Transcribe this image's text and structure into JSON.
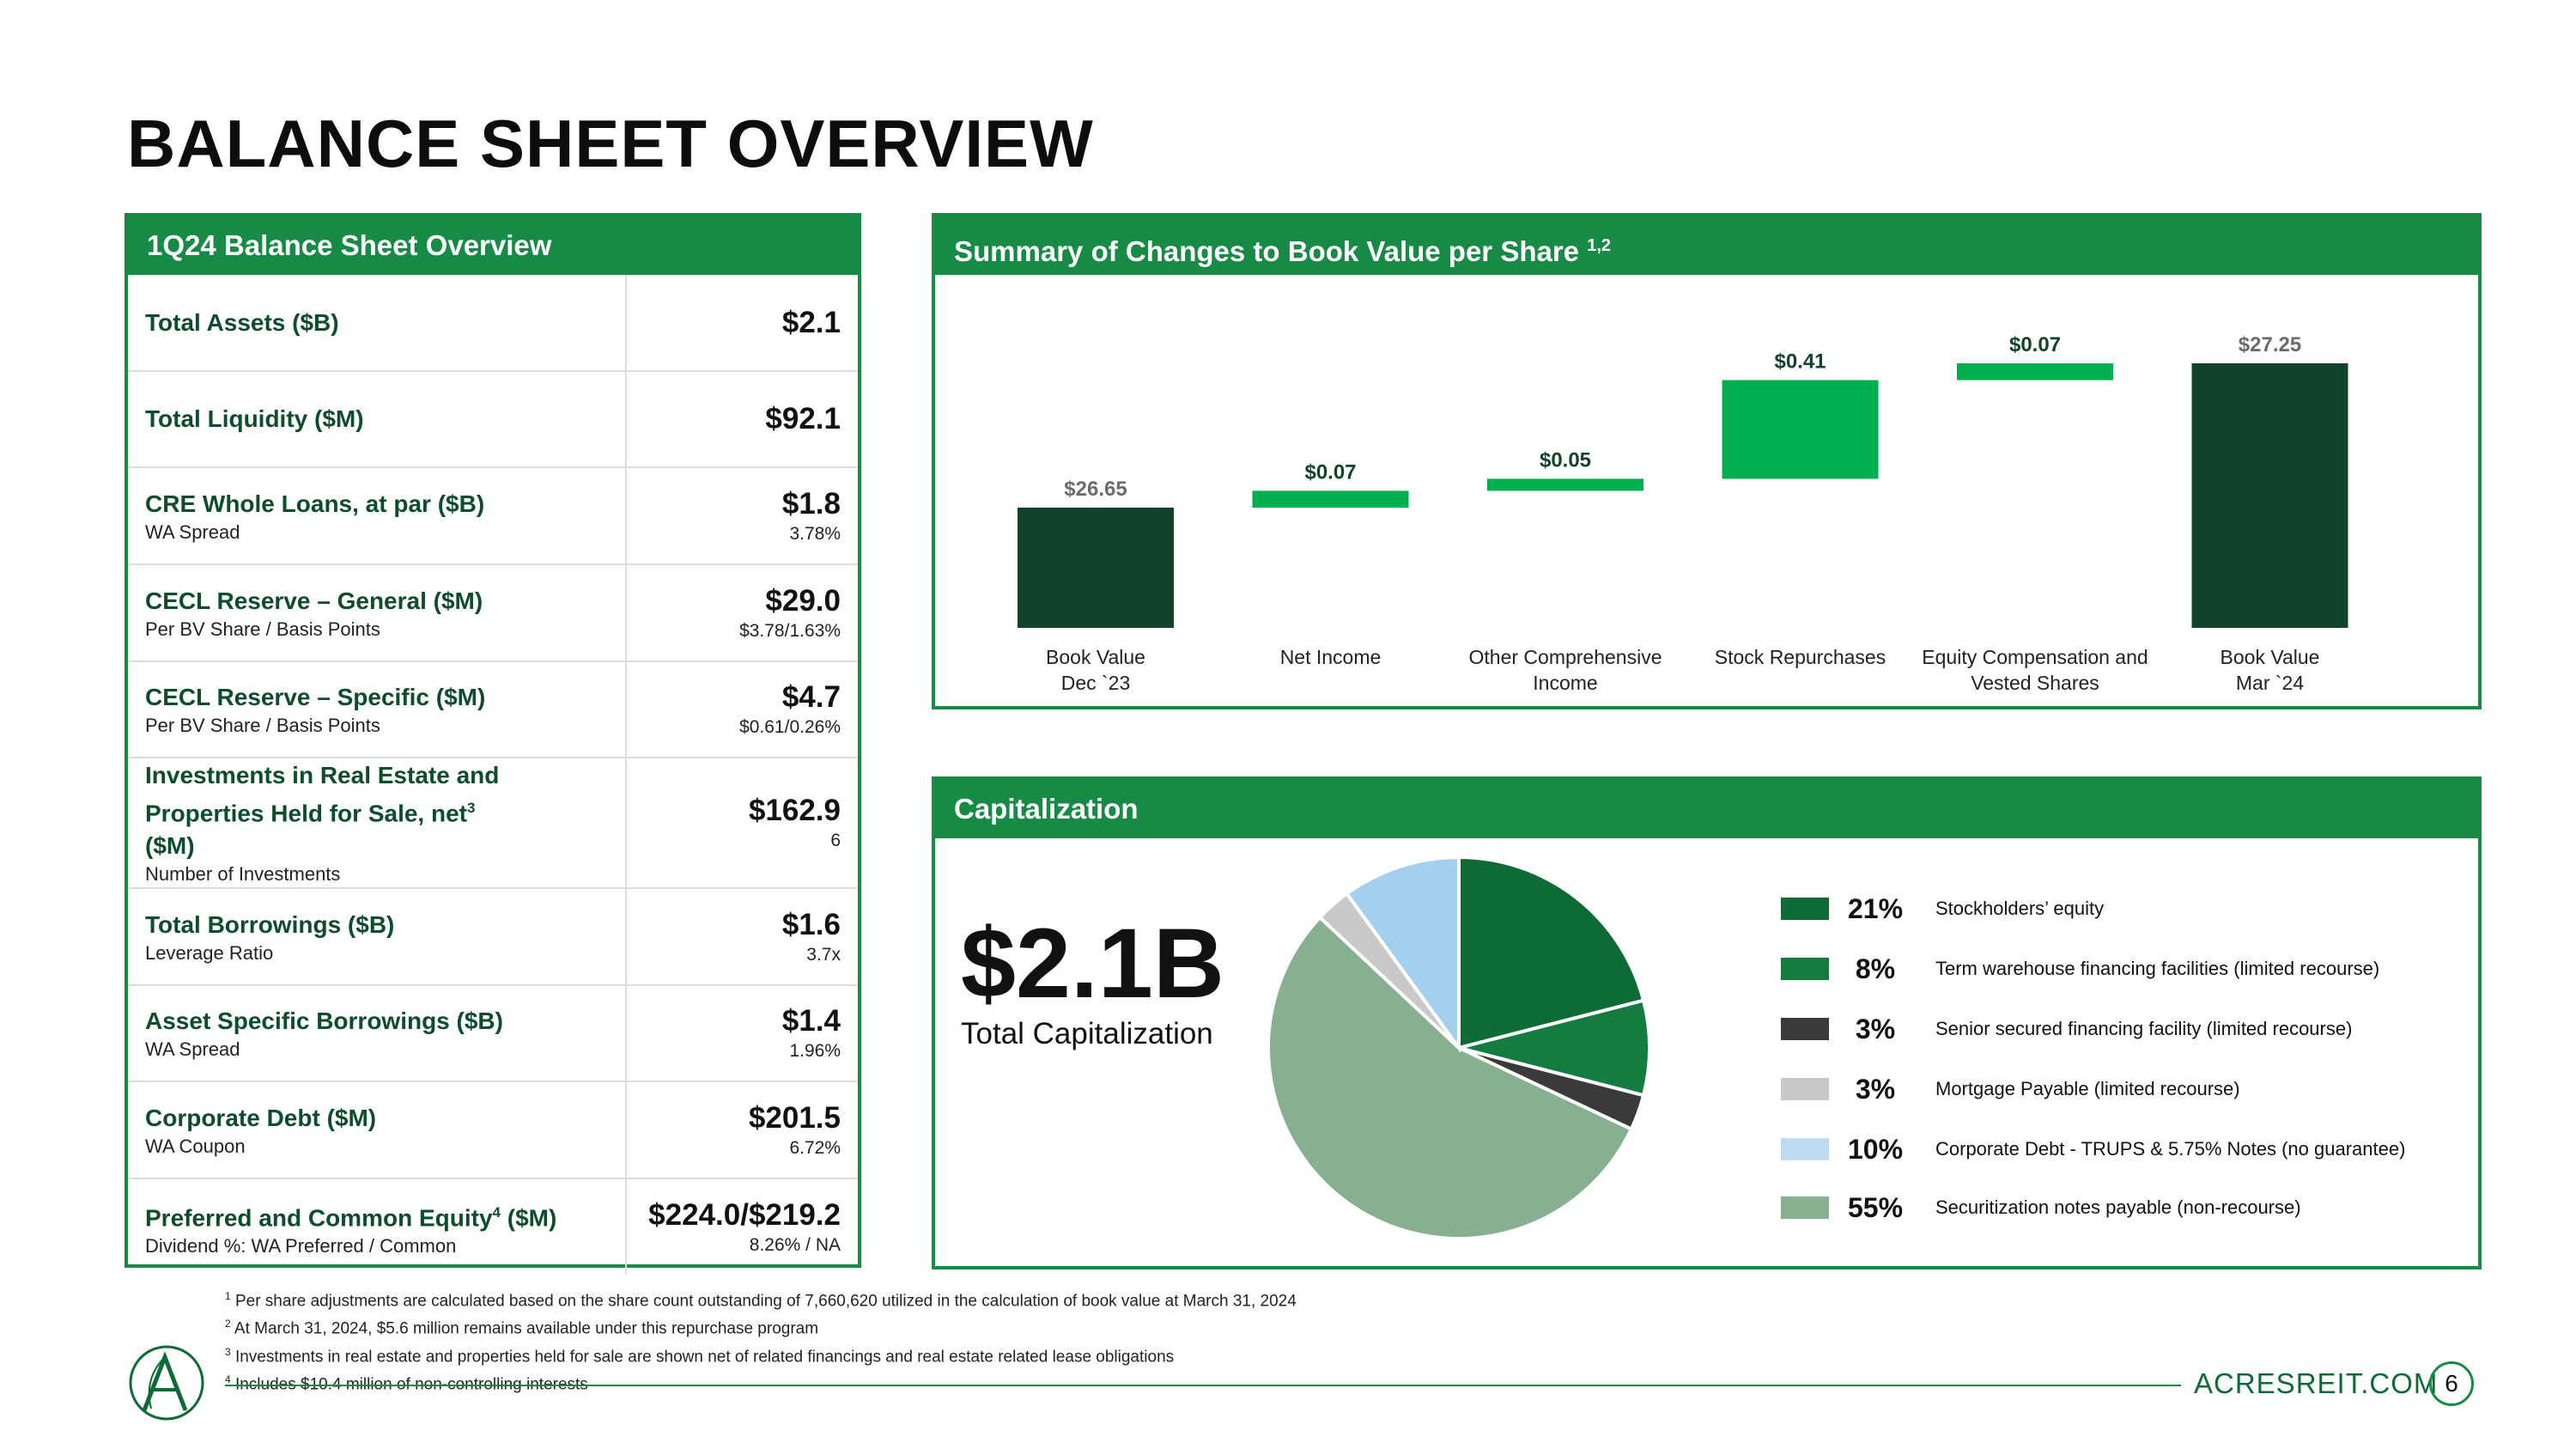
{
  "page": {
    "title": "BALANCE SHEET OVERVIEW",
    "footer_url": "ACRESREIT.COM",
    "page_number": "6"
  },
  "balance_sheet": {
    "header": "1Q24 Balance Sheet Overview",
    "rows": [
      {
        "label": "Total Assets ($B)",
        "sub": "",
        "value": "$2.1",
        "subvalue": ""
      },
      {
        "label": "Total Liquidity ($M)",
        "sub": "",
        "value": "$92.1",
        "subvalue": ""
      },
      {
        "label": "CRE Whole Loans, at par ($B)",
        "sub": "WA Spread",
        "value": "$1.8",
        "subvalue": "3.78%"
      },
      {
        "label": "CECL Reserve – General ($M)",
        "sub": "Per BV Share / Basis Points",
        "value": "$29.0",
        "subvalue": "$3.78/1.63%"
      },
      {
        "label": "CECL Reserve – Specific ($M)",
        "sub": "Per BV Share / Basis Points",
        "value": "$4.7",
        "subvalue": "$0.61/0.26%"
      },
      {
        "label": "Investments in Real Estate and Properties Held for Sale, net",
        "label_sup": "3",
        "label_suffix": " ($M)",
        "sub": "Number of Investments",
        "value": "$162.9",
        "subvalue": "6"
      },
      {
        "label": "Total Borrowings ($B)",
        "sub": "Leverage Ratio",
        "value": "$1.6",
        "subvalue": "3.7x"
      },
      {
        "label": "Asset Specific Borrowings ($B)",
        "sub": "WA Spread",
        "value": "$1.4",
        "subvalue": "1.96%"
      },
      {
        "label": "Corporate Debt ($M)",
        "sub": "WA Coupon",
        "value": "$201.5",
        "subvalue": "6.72%"
      },
      {
        "label": "Preferred and Common Equity",
        "label_sup": "4",
        "label_suffix": " ($M)",
        "sub": "Dividend %: WA Preferred / Common",
        "value": "$224.0/$219.2",
        "subvalue": "8.26% / NA"
      }
    ]
  },
  "book_value_chart": {
    "header": "Summary of Changes to Book Value per Share",
    "header_sup": "1,2"
  },
  "capitalization": {
    "header": "Capitalization",
    "total": "$2.1B",
    "total_label": "Total Capitalization"
  },
  "chart_data": [
    {
      "type": "bar",
      "subtype": "waterfall",
      "title": "Summary of Changes to Book Value per Share",
      "categories": [
        "Book Value\nDec `23",
        "Net Income",
        "Other Comprehensive\nIncome",
        "Stock Repurchases",
        "Equity Compensation and\nVested Shares",
        "Book Value\nMar `24"
      ],
      "values": [
        26.65,
        0.07,
        0.05,
        0.41,
        0.07,
        27.25
      ],
      "labels": [
        "$26.65",
        "$0.07",
        "$0.05",
        "$0.41",
        "$0.07",
        "$27.25"
      ],
      "kinds": [
        "total",
        "change",
        "change",
        "change",
        "change",
        "total"
      ],
      "colors": {
        "total": "#12432b",
        "change": "#00b04f"
      },
      "grid": false,
      "legend": "none"
    },
    {
      "type": "pie",
      "title": "Capitalization",
      "slices": [
        {
          "label": "Stockholders’ equity",
          "pct_label": "21%",
          "value": 21,
          "color": "#0f6b36"
        },
        {
          "label": "Term warehouse financing facilities (limited recourse)",
          "pct_label": "8%",
          "value": 8,
          "color": "#137d40"
        },
        {
          "label": "Senior secured financing facility (limited recourse)",
          "pct_label": "3%",
          "value": 3,
          "color": "#3a3a3a"
        },
        {
          "label": "Mortgage Payable (limited recourse)",
          "pct_label": "3%",
          "value": 3,
          "color": "#c9c9c9"
        },
        {
          "label": "Corporate Debt - TRUPS & 5.75% Notes (no guarantee)",
          "pct_label": "10%",
          "value": 10,
          "color": "#bfdcf0"
        },
        {
          "label": "Securitization notes payable (non-recourse)",
          "pct_label": "55%",
          "value": 55,
          "color": "#86b08f"
        }
      ],
      "slice_draw_order": [
        0,
        1,
        2,
        5,
        3,
        4
      ],
      "pie_colors_override": {
        "4": "#a5cfee"
      },
      "legend": "right"
    }
  ],
  "footnotes": [
    {
      "num": "1",
      "text": "Per share adjustments are calculated based on the share count outstanding of 7,660,620 utilized in the calculation of book value at March 31, 2024"
    },
    {
      "num": "2",
      "text": "At March 31, 2024, $5.6 million remains available under this repurchase program"
    },
    {
      "num": "3",
      "text": "Investments in real estate and properties held for sale are shown net of related financings and real estate related lease obligations"
    },
    {
      "num": "4",
      "text": "Includes $10.4 million of non-controlling interests"
    }
  ]
}
